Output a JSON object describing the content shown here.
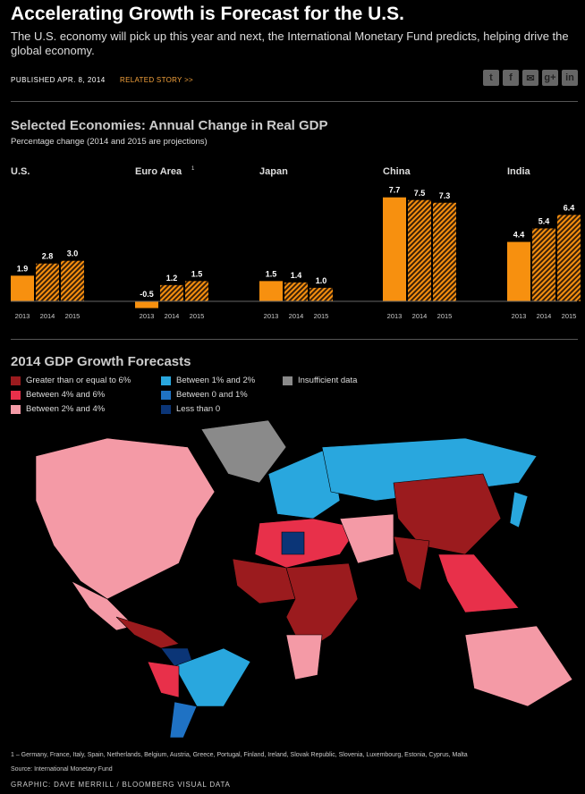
{
  "header": {
    "title": "Accelerating Growth is Forecast for the U.S.",
    "subtitle": "The U.S. economy will pick up this year and next, the International Monetary Fund predicts, helping drive the global economy.",
    "published_label": "PUBLISHED",
    "published_date": "APR. 8, 2014",
    "related_story": "RELATED STORY >>",
    "social": [
      {
        "icon": "twitter-icon",
        "glyph": "t"
      },
      {
        "icon": "facebook-icon",
        "glyph": "f"
      },
      {
        "icon": "email-icon",
        "glyph": "✉"
      },
      {
        "icon": "google-plus-icon",
        "glyph": "g+"
      },
      {
        "icon": "linkedin-icon",
        "glyph": "in"
      }
    ]
  },
  "chart_data": [
    {
      "type": "bar",
      "title": "Selected Economies: Annual Change in Real GDP",
      "subtitle": "Percentage change (2014 and 2015 are projections)",
      "categories": [
        "2013",
        "2014",
        "2015"
      ],
      "colors": {
        "actual": "#f7900f",
        "projection_hatch": "#f7900f"
      },
      "groups": [
        {
          "name": "U.S.",
          "values": [
            1.9,
            2.8,
            3.0
          ],
          "labels": [
            "1.9",
            "2.8",
            "3.0"
          ]
        },
        {
          "name": "Euro Area",
          "footnote_mark": "1",
          "values": [
            -0.5,
            1.2,
            1.5
          ],
          "labels": [
            "-0.5",
            "1.2",
            "1.5"
          ]
        },
        {
          "name": "Japan",
          "values": [
            1.5,
            1.4,
            1.0
          ],
          "labels": [
            "1.5",
            "1.4",
            "1.0"
          ]
        },
        {
          "name": "China",
          "values": [
            7.7,
            7.5,
            7.3
          ],
          "labels": [
            "7.7",
            "7.5",
            "7.3"
          ]
        },
        {
          "name": "India",
          "values": [
            4.4,
            5.4,
            6.4
          ],
          "labels": [
            "4.4",
            "5.4",
            "6.4"
          ]
        }
      ]
    },
    {
      "type": "choropleth",
      "title": "2014 GDP Growth Forecasts",
      "legend": [
        {
          "label": "Greater than or equal to 6%",
          "color": "#9b1b1e"
        },
        {
          "label": "Between 4% and 6%",
          "color": "#e8304a"
        },
        {
          "label": "Between 2% and 4%",
          "color": "#f49aa6"
        },
        {
          "label": "Between 1% and 2%",
          "color": "#29a7de"
        },
        {
          "label": "Between 0 and 1%",
          "color": "#1f72c4"
        },
        {
          "label": "Less than 0",
          "color": "#0b3577"
        },
        {
          "label": "Insufficient data",
          "color": "#8a8a8a"
        }
      ]
    }
  ],
  "footer": {
    "footnote": "1 – Germany, France, Italy, Spain, Netherlands, Belgium, Austria, Greece, Portugal, Finland, Ireland, Slovak Republic, Slovenia, Luxembourg, Estonia, Cyprus, Malta",
    "source": "Source: International Monetary Fund",
    "credit": "GRAPHIC: DAVE MERRILL / BLOOMBERG VISUAL DATA"
  }
}
